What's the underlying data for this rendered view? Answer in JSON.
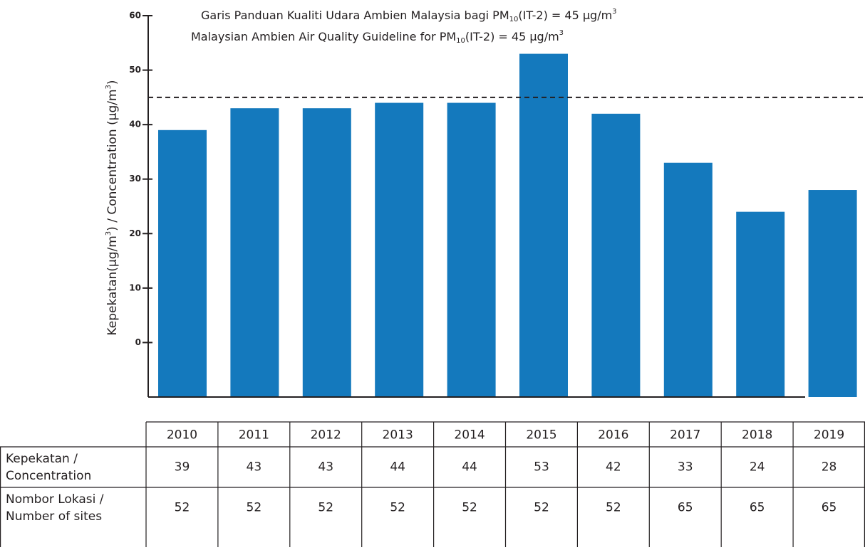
{
  "chart_data": {
    "type": "bar",
    "annotation_lines": [
      [
        "Garis Panduan Kualiti Udara Ambien Malaysia bagi PM",
        "10",
        "(IT-2) = 45 μg/m",
        "3"
      ],
      [
        "Malaysian Ambien Air Quality Guideline for PM",
        "10",
        "(IT-2) = 45 μg/m",
        "3"
      ]
    ],
    "ylabel": [
      "Kepekatan(μg/m",
      "3",
      ") / Concentration (μg/m",
      "3",
      ")"
    ],
    "guideline": 45,
    "categories": [
      "2010",
      "2011",
      "2012",
      "2013",
      "2014",
      "2015",
      "2016",
      "2017",
      "2018",
      "2019"
    ],
    "values": [
      39,
      43,
      43,
      44,
      44,
      53,
      42,
      33,
      24,
      28
    ],
    "color": "#1479bd",
    "ylim": [
      -10,
      60
    ],
    "yticks": [
      0,
      10,
      20,
      30,
      40,
      50,
      60
    ]
  },
  "table": {
    "row_labels": [
      [
        "Kepekatan /",
        "Concentration"
      ],
      [
        "Nombor Lokasi /",
        "Number of sites"
      ]
    ],
    "sites": [
      52,
      52,
      52,
      52,
      52,
      52,
      52,
      65,
      65,
      65
    ]
  }
}
